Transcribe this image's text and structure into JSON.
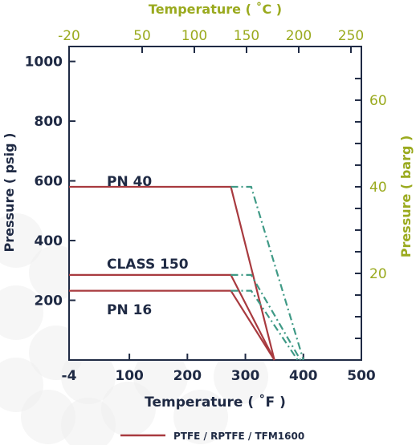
{
  "colors": {
    "axis": "#1f2a44",
    "secondary_axis": "#9aaa1e",
    "series_solid": "#a83a3f",
    "series_dashdot": "#3f9a86",
    "background_circles": "#eeeeee"
  },
  "chart_data": {
    "type": "line",
    "title": "",
    "xlabel": "Temperature ( ˚F )",
    "ylabel": "Pressure ( psig )",
    "x2label": "Temperature ( ˚C )",
    "y2label": "Pressure ( barg )",
    "xlim": [
      -4,
      500
    ],
    "ylim": [
      0,
      1050
    ],
    "x_ticks": [
      -4,
      100,
      200,
      300,
      400,
      500
    ],
    "x_tick_labels": [
      "-4",
      "100",
      "200",
      "300",
      "400",
      "500"
    ],
    "y_ticks": [
      200,
      400,
      600,
      800,
      1000
    ],
    "y_tick_labels": [
      "200",
      "400",
      "600",
      "800",
      "1000"
    ],
    "x2_ticks_c": [
      -20,
      50,
      100,
      150,
      200,
      250
    ],
    "x2_tick_labels": [
      "-20",
      "50",
      "100",
      "150",
      "200",
      "250"
    ],
    "y2_ticks_barg": [
      20,
      40,
      60
    ],
    "y2_tick_labels": [
      "20",
      "40",
      "60"
    ],
    "grid": false,
    "legend": {
      "position": "bottom",
      "entries": [
        "PTFE / RPTFE / TFM1600"
      ]
    },
    "annotations": [
      "PN 40",
      "CLASS 150",
      "PN 16"
    ],
    "series": [
      {
        "name": "PTFE / RPTFE / TFM1600",
        "style": "solid",
        "annotation_index": 0,
        "x": [
          -4,
          275,
          350
        ],
        "y": [
          580,
          580,
          0
        ]
      },
      {
        "name": "PTFE / RPTFE / TFM1600",
        "style": "solid",
        "annotation_index": 1,
        "x": [
          -4,
          275,
          350
        ],
        "y": [
          285,
          285,
          0
        ]
      },
      {
        "name": "PTFE / RPTFE / TFM1600",
        "style": "solid",
        "annotation_index": 2,
        "x": [
          -4,
          275,
          350
        ],
        "y": [
          232,
          232,
          0
        ]
      },
      {
        "style": "dashdot",
        "x": [
          275,
          310,
          400
        ],
        "y": [
          580,
          580,
          0
        ]
      },
      {
        "style": "dashdot",
        "x": [
          275,
          310,
          395
        ],
        "y": [
          285,
          285,
          0
        ]
      },
      {
        "style": "dashdot",
        "x": [
          275,
          310,
          390
        ],
        "y": [
          232,
          232,
          0
        ]
      }
    ]
  }
}
